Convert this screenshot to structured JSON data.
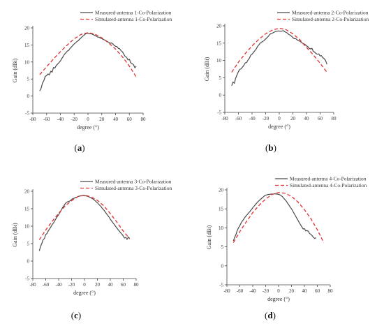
{
  "chart_data": [
    {
      "type": "line",
      "panel": "(a)",
      "panel_letter": "a",
      "xlabel": "degree (°)",
      "ylabel": "Gain (dBi)",
      "xlim": [
        -80,
        80
      ],
      "ylim": [
        -5,
        20
      ],
      "xticks": [
        -80,
        -60,
        -40,
        -20,
        0,
        20,
        40,
        60,
        80
      ],
      "yticks": [
        -5,
        0,
        5,
        10,
        15,
        20
      ],
      "legend": "top-right",
      "series": [
        {
          "name": "Measured-antenna 1-Co-Polarization",
          "color": "#4a4a4a",
          "style": "solid",
          "x": [
            -70,
            -68,
            -66,
            -64,
            -62,
            -60,
            -58,
            -56,
            -54,
            -52,
            -50,
            -48,
            -46,
            -44,
            -42,
            -40,
            -38,
            -36,
            -34,
            -32,
            -30,
            -28,
            -26,
            -24,
            -22,
            -20,
            -18,
            -16,
            -14,
            -12,
            -10,
            -8,
            -6,
            -4,
            -2,
            0,
            2,
            4,
            6,
            8,
            10,
            12,
            14,
            16,
            18,
            20,
            22,
            24,
            26,
            28,
            30,
            32,
            34,
            36,
            38,
            40,
            42,
            44,
            46,
            48,
            50,
            52,
            54,
            56,
            58,
            60,
            62,
            64,
            66,
            68,
            70
          ],
          "y": [
            1.5,
            2.3,
            3.8,
            4.5,
            5.8,
            6.0,
            6.5,
            6.2,
            7.3,
            7.0,
            8.4,
            8.2,
            9.0,
            9.4,
            9.8,
            10.3,
            11.0,
            11.6,
            12.3,
            12.7,
            13.2,
            13.4,
            14.0,
            14.4,
            14.9,
            15.3,
            15.6,
            16.0,
            16.3,
            16.7,
            17.1,
            17.5,
            17.8,
            18.2,
            18.4,
            18.4,
            18.3,
            18.3,
            18.2,
            18.0,
            17.8,
            17.6,
            17.3,
            17.3,
            17.0,
            16.9,
            16.6,
            16.5,
            16.3,
            16.0,
            15.8,
            15.5,
            15.6,
            15.3,
            14.9,
            14.6,
            14.5,
            14.0,
            13.9,
            13.3,
            13.0,
            12.3,
            11.6,
            11.4,
            10.6,
            10.8,
            9.8,
            9.5,
            9.2,
            8.3,
            8.8
          ]
        },
        {
          "name": "Simulated-antenna 1-Co-Polarization",
          "color": "#e03030",
          "style": "dashed",
          "x": [
            -70,
            -60,
            -50,
            -40,
            -30,
            -20,
            -10,
            0,
            10,
            20,
            30,
            40,
            50,
            60,
            70
          ],
          "y": [
            6.3,
            8.6,
            10.9,
            13.0,
            15.0,
            16.8,
            18.1,
            18.6,
            18.2,
            17.1,
            15.6,
            13.8,
            11.5,
            8.8,
            5.6
          ]
        }
      ]
    },
    {
      "type": "line",
      "panel": "(b)",
      "panel_letter": "b",
      "xlabel": "degree (°)",
      "ylabel": "Gain (dBi)",
      "xlim": [
        -80,
        80
      ],
      "ylim": [
        -5,
        20
      ],
      "xticks": [
        -80,
        -60,
        -40,
        -20,
        0,
        20,
        40,
        60,
        80
      ],
      "yticks": [
        -5,
        0,
        5,
        10,
        15,
        20
      ],
      "legend": "top-right",
      "series": [
        {
          "name": "Measured-antenna 2-Co-Polarization",
          "color": "#4a4a4a",
          "style": "solid",
          "x": [
            -70,
            -68,
            -66,
            -64,
            -62,
            -60,
            -58,
            -56,
            -54,
            -52,
            -50,
            -48,
            -46,
            -44,
            -42,
            -40,
            -38,
            -36,
            -34,
            -32,
            -30,
            -28,
            -26,
            -24,
            -22,
            -20,
            -18,
            -16,
            -14,
            -12,
            -10,
            -8,
            -6,
            -4,
            -2,
            0,
            2,
            4,
            6,
            8,
            10,
            12,
            14,
            16,
            18,
            20,
            22,
            24,
            26,
            28,
            30,
            32,
            34,
            36,
            38,
            40,
            42,
            44,
            46,
            48,
            50,
            52,
            54,
            56,
            58,
            60,
            62,
            64,
            66,
            68,
            70
          ],
          "y": [
            2.7,
            3.8,
            3.4,
            4.9,
            5.9,
            6.8,
            7.4,
            7.6,
            8.1,
            8.6,
            9.3,
            9.4,
            10.1,
            10.6,
            11.5,
            11.8,
            12.3,
            12.8,
            13.3,
            14.0,
            14.5,
            15.0,
            15.3,
            15.5,
            15.8,
            16.2,
            16.6,
            17.0,
            17.5,
            17.8,
            17.9,
            18.1,
            18.3,
            18.4,
            18.5,
            18.5,
            18.4,
            18.5,
            18.6,
            18.3,
            18.1,
            17.9,
            17.5,
            17.3,
            17.0,
            16.6,
            16.3,
            16.3,
            16.0,
            15.7,
            15.6,
            15.3,
            15.0,
            14.8,
            14.6,
            14.2,
            14.0,
            13.5,
            13.3,
            13.5,
            12.6,
            12.4,
            12.0,
            11.8,
            11.9,
            11.3,
            11.4,
            10.8,
            10.5,
            10.0,
            8.9
          ]
        },
        {
          "name": "Simulated-antenna 2-Co-Polarization",
          "color": "#e03030",
          "style": "dashed",
          "x": [
            -70,
            -60,
            -50,
            -40,
            -30,
            -20,
            -10,
            0,
            10,
            20,
            30,
            40,
            50,
            60,
            70
          ],
          "y": [
            6.6,
            9.5,
            12.0,
            14.2,
            16.1,
            17.7,
            18.8,
            19.3,
            18.9,
            17.7,
            16.0,
            13.8,
            11.6,
            9.2,
            6.6
          ]
        }
      ]
    },
    {
      "type": "line",
      "panel": "(c)",
      "panel_letter": "c",
      "xlabel": "degree (°)",
      "ylabel": "Gain (dBi)",
      "xlim": [
        -80,
        80
      ],
      "ylim": [
        -5,
        20
      ],
      "xticks": [
        -80,
        -60,
        -40,
        -20,
        0,
        20,
        40,
        60,
        80
      ],
      "yticks": [
        -5,
        0,
        5,
        10,
        15,
        20
      ],
      "legend": "top-right",
      "series": [
        {
          "name": "Measured-antenna 3-Co-Polarization",
          "color": "#4a4a4a",
          "style": "solid",
          "x": [
            -70,
            -68,
            -66,
            -64,
            -62,
            -60,
            -58,
            -56,
            -54,
            -52,
            -50,
            -48,
            -46,
            -44,
            -42,
            -40,
            -38,
            -36,
            -34,
            -32,
            -30,
            -28,
            -26,
            -24,
            -22,
            -20,
            -18,
            -16,
            -14,
            -12,
            -10,
            -8,
            -6,
            -4,
            -2,
            0,
            2,
            4,
            6,
            8,
            10,
            12,
            14,
            16,
            18,
            20,
            22,
            24,
            26,
            28,
            30,
            32,
            34,
            36,
            38,
            40,
            42,
            44,
            46,
            48,
            50,
            52,
            54,
            56,
            58,
            60,
            62,
            64,
            66,
            68,
            70
          ],
          "y": [
            2.9,
            4.2,
            5.1,
            6.1,
            6.5,
            7.6,
            7.9,
            8.7,
            9.2,
            9.8,
            10.5,
            10.9,
            11.6,
            12.2,
            12.8,
            13.3,
            13.9,
            14.6,
            15.3,
            15.8,
            16.4,
            16.8,
            17.0,
            17.1,
            17.3,
            17.6,
            17.9,
            18.0,
            18.2,
            18.3,
            18.5,
            18.6,
            18.7,
            18.7,
            18.8,
            18.7,
            18.7,
            18.6,
            18.5,
            18.3,
            18.1,
            17.9,
            17.7,
            17.4,
            17.0,
            16.7,
            16.3,
            15.9,
            15.5,
            15.0,
            14.6,
            14.1,
            13.6,
            13.1,
            12.6,
            12.0,
            11.5,
            11.0,
            10.5,
            10.0,
            9.5,
            9.0,
            8.6,
            8.1,
            7.7,
            7.2,
            6.6,
            6.8,
            6.2,
            6.9,
            6.4
          ]
        },
        {
          "name": "Simulated-antenna 3-Co-Polarization",
          "color": "#e03030",
          "style": "dashed",
          "x": [
            -70,
            -60,
            -50,
            -40,
            -30,
            -20,
            -10,
            0,
            10,
            20,
            30,
            40,
            50,
            60,
            70
          ],
          "y": [
            6.1,
            8.9,
            11.4,
            13.7,
            15.8,
            17.3,
            18.5,
            18.9,
            18.4,
            17.4,
            15.8,
            13.6,
            11.2,
            8.6,
            6.4
          ]
        }
      ]
    },
    {
      "type": "line",
      "panel": "(d)",
      "panel_letter": "d",
      "xlabel": "degree (°)",
      "ylabel": "Gain (dBi)",
      "xlim": [
        -80,
        80
      ],
      "ylim": [
        -5,
        20
      ],
      "xticks": [
        -80,
        -60,
        -40,
        -20,
        0,
        20,
        40,
        60,
        80
      ],
      "yticks": [
        -5,
        0,
        5,
        10,
        15,
        20
      ],
      "legend": "top-right",
      "series": [
        {
          "name": "Measured-antenna 4-Co-Polarization",
          "color": "#4a4a4a",
          "style": "solid",
          "x": [
            -70,
            -68,
            -66,
            -64,
            -62,
            -60,
            -58,
            -56,
            -54,
            -52,
            -50,
            -48,
            -46,
            -44,
            -42,
            -40,
            -38,
            -36,
            -34,
            -32,
            -30,
            -28,
            -26,
            -24,
            -22,
            -20,
            -18,
            -16,
            -14,
            -12,
            -10,
            -8,
            -6,
            -4,
            -2,
            0,
            2,
            4,
            6,
            8,
            10,
            12,
            14,
            16,
            18,
            20,
            22,
            24,
            26,
            28,
            30,
            32,
            34,
            36,
            38,
            40,
            42,
            44,
            46,
            48,
            50,
            52,
            54,
            56,
            58
          ],
          "y": [
            6.6,
            7.5,
            8.2,
            9.3,
            10.0,
            10.6,
            11.3,
            11.8,
            12.3,
            12.8,
            13.2,
            13.6,
            14.0,
            14.4,
            14.8,
            15.3,
            15.7,
            16.1,
            16.5,
            16.9,
            17.2,
            17.5,
            17.8,
            18.1,
            18.4,
            18.6,
            18.7,
            18.8,
            18.8,
            18.9,
            18.9,
            18.9,
            19.0,
            18.9,
            18.9,
            18.8,
            18.7,
            18.5,
            18.2,
            17.8,
            17.4,
            17.0,
            16.5,
            16.0,
            15.5,
            15.0,
            14.4,
            13.8,
            13.2,
            12.6,
            12.0,
            11.4,
            10.8,
            10.3,
            9.7,
            9.8,
            9.2,
            9.3,
            9.1,
            8.5,
            8.3,
            7.9,
            7.5,
            7.2,
            7.4
          ]
        },
        {
          "name": "Simulated-antenna 4-Co-Polarization",
          "color": "#e03030",
          "style": "dashed",
          "x": [
            -70,
            -60,
            -50,
            -40,
            -30,
            -20,
            -10,
            0,
            10,
            20,
            30,
            40,
            50,
            60,
            70
          ],
          "y": [
            6.1,
            9.0,
            11.6,
            14.0,
            16.0,
            17.6,
            18.8,
            19.3,
            19.1,
            18.3,
            16.8,
            14.8,
            12.4,
            9.5,
            6.1
          ]
        }
      ]
    }
  ]
}
